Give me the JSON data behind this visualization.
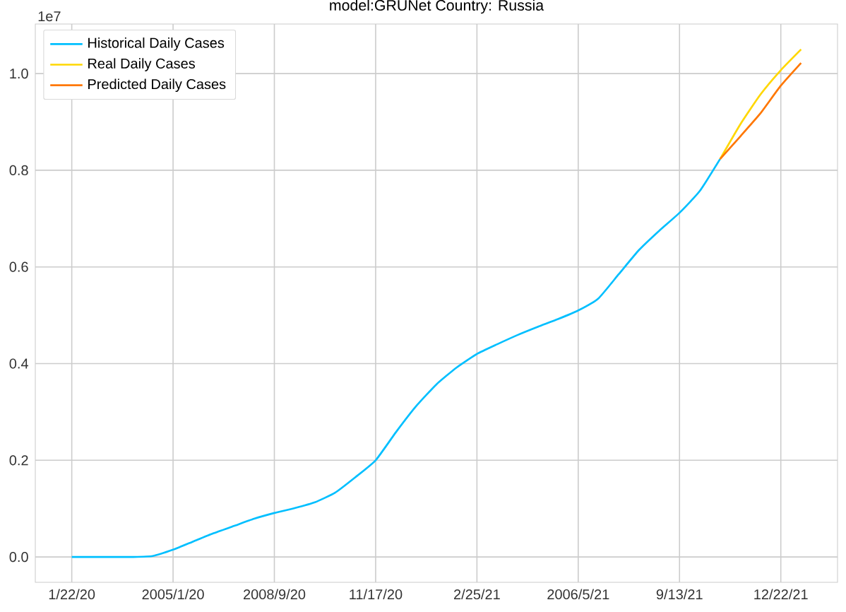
{
  "chart_data": {
    "type": "line",
    "title": "model:GRUNet  Country: Russia",
    "annotations": [
      "1e7"
    ],
    "categories": [
      "1/22/20",
      null,
      null,
      null,
      null,
      "2005/1/20",
      null,
      null,
      null,
      null,
      "2008/9/20",
      null,
      null,
      null,
      null,
      "11/17/20",
      null,
      null,
      null,
      null,
      "2/25/21",
      null,
      null,
      null,
      null,
      "2006/5/21",
      null,
      null,
      null,
      null,
      "9/13/21",
      null,
      null,
      null,
      null,
      "12/22/21",
      null
    ],
    "ylim": [
      -0.0525,
      1.1025
    ],
    "yticks": [
      {
        "value": 0,
        "label": "0.0"
      },
      0.2,
      0.4,
      0.6,
      0.8,
      {
        "value": 1,
        "label": "1.0"
      }
    ],
    "grid": true,
    "legend": "top left",
    "line_style": "solid",
    "series": [
      {
        "name": "Historical Daily Cases",
        "color": "#00bfff",
        "values": [
          0,
          0,
          0,
          0,
          0.002,
          0.015,
          0.032,
          0.049,
          0.064,
          0.079,
          0.091,
          0.101,
          0.113,
          0.133,
          0.165,
          0.2,
          0.258,
          0.312,
          0.357,
          0.392,
          0.42,
          0.44,
          0.459,
          0.476,
          0.492,
          0.51,
          0.535,
          0.585,
          0.635,
          0.675,
          0.712,
          0.757,
          0.823,
          null,
          null,
          null,
          null
        ]
      },
      {
        "name": "Real Daily Cases",
        "color": "#ffd700",
        "values": [
          null,
          null,
          null,
          null,
          null,
          null,
          null,
          null,
          null,
          null,
          null,
          null,
          null,
          null,
          null,
          null,
          null,
          null,
          null,
          null,
          null,
          null,
          null,
          null,
          null,
          null,
          null,
          null,
          null,
          null,
          null,
          null,
          0.823,
          0.895,
          0.957,
          1.007,
          1.05
        ]
      },
      {
        "name": "Predicted Daily Cases",
        "color": "#ff7700",
        "values": [
          null,
          null,
          null,
          null,
          null,
          null,
          null,
          null,
          null,
          null,
          null,
          null,
          null,
          null,
          null,
          null,
          null,
          null,
          null,
          null,
          null,
          null,
          null,
          null,
          null,
          null,
          null,
          null,
          null,
          null,
          null,
          null,
          0.823,
          0.87,
          0.918,
          0.975,
          1.022
        ]
      }
    ]
  }
}
